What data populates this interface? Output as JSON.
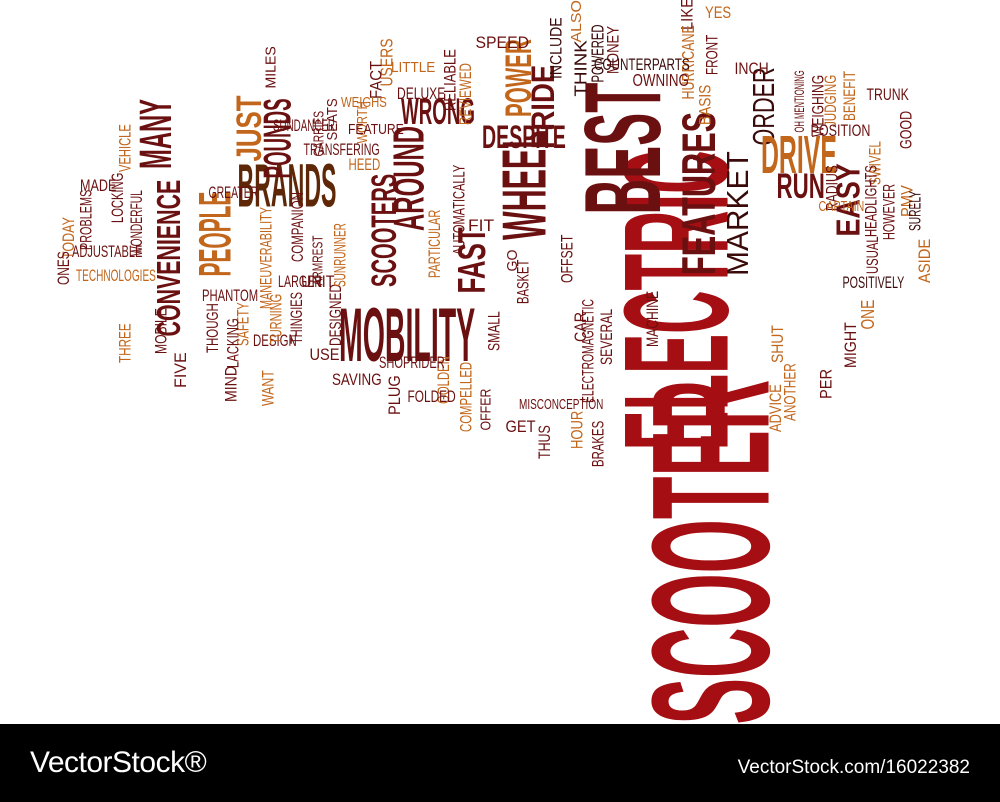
{
  "palette": {
    "dark_red": "#6b1010",
    "red": "#a50f13",
    "brown": "#5e2808",
    "orange": "#c1661b",
    "deep": "#3a0a0a"
  },
  "word_cloud": {
    "words": [
      "SCOOTER",
      "ELECTRIC",
      "BEST",
      "MOBILITY",
      "FEATURES",
      "WHEEL",
      "BRANDS",
      "DESPITE",
      "MARKET",
      "ORDER",
      "DRIVE",
      "EASY",
      "RUN",
      "WRONG",
      "PRIDE",
      "POWER",
      "AROUND",
      "SCOOTERS",
      "JUST",
      "POUNDS",
      "MANY",
      "PEOPLE",
      "CONVENIENCE",
      "FAST",
      "SPEED",
      "INCLUDE",
      "ALSO",
      "THINK",
      "POWERED",
      "MONEY",
      "LIKE",
      "YES",
      "HURRICANE",
      "BASIS",
      "INCH",
      "FRONT",
      "OWNING",
      "COUNTERPARTS",
      "USERS",
      "LITTLE",
      "RELIABLE",
      "REVIEWED",
      "DELUXE",
      "MILES",
      "FACT",
      "WORTH",
      "WEIGHS",
      "SEATS",
      "CARRIES",
      "FEATURE",
      "SUNDANCER",
      "TRANSFERING",
      "HEED",
      "OH MENTIONING",
      "JUDGING",
      "BENEFIT",
      "WEIGHING",
      "TRUNK",
      "POSITION",
      "GOOD",
      "SWIVEL",
      "RADIUS",
      "CAPTAIN",
      "HEADLIGHTS",
      "HOWEVER",
      "PMV",
      "SURELY",
      "USUAL",
      "ASIDE",
      "POSITIVELY",
      "ONE",
      "MIGHT",
      "MACHINE",
      "SHUT",
      "PER",
      "ANOTHER",
      "ADVICE",
      "SEVERAL",
      "OFFSET",
      "BASKET",
      "SMALL",
      "CAR",
      "ELECTROMAGNETIC",
      "MISCONCEPTION",
      "BRAKES",
      "HOUR",
      "THUS",
      "GET",
      "OFFER",
      "COMPELLED",
      "GOLDEN",
      "PLUG",
      "FOLDED",
      "SAVING",
      "SHOPRIDER",
      "USE",
      "DESIGNED",
      "UNIT",
      "ARMREST",
      "SUNRUNNER",
      "PARTICULAR",
      "AUTOMATICALLY",
      "FIT",
      "GO",
      "COMPANION",
      "LARGER",
      "THINGIES",
      "DESIGN",
      "TURNING",
      "SAFETY",
      "WANT",
      "MIND",
      "LACKING",
      "PHANTOM",
      "THOUGH",
      "FIVE",
      "MOBILE",
      "THREE",
      "MANEUVERABILITY",
      "GREATER",
      "WONDERFUL",
      "LOCKING",
      "MADE",
      "VEHICLE",
      "PROBLEMS",
      "ADJUSTABLE",
      "TODAY",
      "ONES",
      "TECHNOLOGIES"
    ]
  },
  "footer": {
    "brand": "VectorStock®",
    "stock_id": "VectorStock.com/16022382"
  }
}
